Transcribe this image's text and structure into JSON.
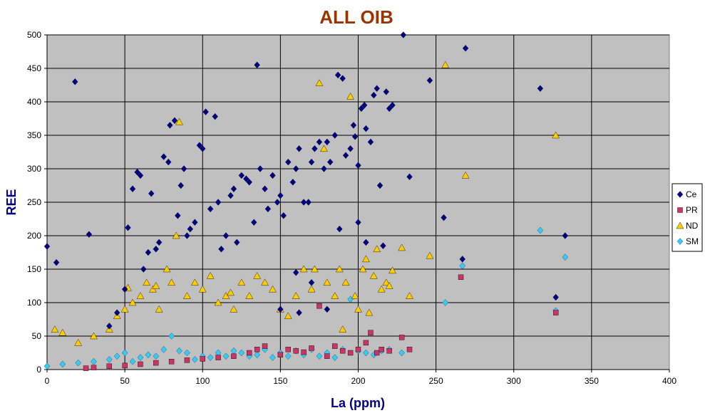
{
  "chart_data": {
    "type": "scatter",
    "title": "ALL OIB",
    "xlabel": "La (ppm)",
    "ylabel": "REE",
    "xlim": [
      0,
      400
    ],
    "ylim": [
      0,
      500
    ],
    "xticks": [
      "0",
      "50",
      "100",
      "150",
      "200",
      "250",
      "300",
      "350",
      "400"
    ],
    "yticks": [
      "0",
      "50",
      "100",
      "150",
      "200",
      "250",
      "300",
      "350",
      "400",
      "450",
      "500"
    ],
    "grid": true,
    "legend_position": "right",
    "plot_background": "#C0C0C0",
    "title_color": "#993300",
    "axis_title_color": "#000080",
    "series": [
      {
        "name": "Ce",
        "marker": "diamond",
        "color": "#000080",
        "points": [
          [
            0,
            184
          ],
          [
            6,
            160
          ],
          [
            18,
            430
          ],
          [
            27,
            202
          ],
          [
            40,
            65
          ],
          [
            45,
            85
          ],
          [
            50,
            120
          ],
          [
            52,
            212
          ],
          [
            55,
            270
          ],
          [
            58,
            295
          ],
          [
            60,
            290
          ],
          [
            62,
            150
          ],
          [
            65,
            175
          ],
          [
            67,
            263
          ],
          [
            70,
            180
          ],
          [
            72,
            190
          ],
          [
            75,
            318
          ],
          [
            78,
            310
          ],
          [
            79,
            365
          ],
          [
            82,
            372
          ],
          [
            84,
            230
          ],
          [
            86,
            275
          ],
          [
            88,
            300
          ],
          [
            90,
            200
          ],
          [
            92,
            210
          ],
          [
            95,
            220
          ],
          [
            98,
            335
          ],
          [
            100,
            330
          ],
          [
            102,
            385
          ],
          [
            105,
            240
          ],
          [
            108,
            378
          ],
          [
            110,
            250
          ],
          [
            112,
            180
          ],
          [
            115,
            200
          ],
          [
            118,
            260
          ],
          [
            120,
            270
          ],
          [
            122,
            190
          ],
          [
            125,
            290
          ],
          [
            128,
            285
          ],
          [
            130,
            280
          ],
          [
            133,
            220
          ],
          [
            135,
            455
          ],
          [
            137,
            300
          ],
          [
            140,
            270
          ],
          [
            142,
            240
          ],
          [
            145,
            290
          ],
          [
            148,
            250
          ],
          [
            150,
            260
          ],
          [
            152,
            230
          ],
          [
            155,
            310
          ],
          [
            158,
            280
          ],
          [
            160,
            300
          ],
          [
            162,
            330
          ],
          [
            165,
            250
          ],
          [
            168,
            250
          ],
          [
            170,
            310
          ],
          [
            172,
            330
          ],
          [
            175,
            340
          ],
          [
            178,
            300
          ],
          [
            180,
            340
          ],
          [
            182,
            310
          ],
          [
            185,
            350
          ],
          [
            187,
            440
          ],
          [
            190,
            435
          ],
          [
            192,
            320
          ],
          [
            195,
            330
          ],
          [
            197,
            365
          ],
          [
            198,
            348
          ],
          [
            200,
            305
          ],
          [
            202,
            390
          ],
          [
            204,
            395
          ],
          [
            205,
            360
          ],
          [
            208,
            340
          ],
          [
            210,
            410
          ],
          [
            212,
            420
          ],
          [
            214,
            275
          ],
          [
            216,
            185
          ],
          [
            218,
            415
          ],
          [
            220,
            390
          ],
          [
            222,
            395
          ],
          [
            229,
            500
          ],
          [
            233,
            288
          ],
          [
            246,
            432
          ],
          [
            255,
            227
          ],
          [
            267,
            165
          ],
          [
            269,
            480
          ],
          [
            317,
            420
          ],
          [
            327,
            108
          ],
          [
            333,
            200
          ],
          [
            160,
            145
          ],
          [
            170,
            130
          ],
          [
            180,
            90
          ],
          [
            150,
            90
          ],
          [
            162,
            85
          ],
          [
            205,
            190
          ],
          [
            200,
            220
          ],
          [
            188,
            210
          ]
        ]
      },
      {
        "name": "PR",
        "marker": "square",
        "color": "#CC3366",
        "points": [
          [
            25,
            2
          ],
          [
            30,
            3
          ],
          [
            40,
            5
          ],
          [
            50,
            6
          ],
          [
            60,
            8
          ],
          [
            70,
            10
          ],
          [
            80,
            12
          ],
          [
            90,
            14
          ],
          [
            100,
            16
          ],
          [
            110,
            18
          ],
          [
            120,
            20
          ],
          [
            130,
            25
          ],
          [
            135,
            30
          ],
          [
            140,
            35
          ],
          [
            150,
            22
          ],
          [
            155,
            30
          ],
          [
            160,
            28
          ],
          [
            165,
            26
          ],
          [
            170,
            32
          ],
          [
            175,
            95
          ],
          [
            180,
            20
          ],
          [
            185,
            35
          ],
          [
            190,
            28
          ],
          [
            195,
            25
          ],
          [
            200,
            30
          ],
          [
            205,
            40
          ],
          [
            208,
            55
          ],
          [
            212,
            25
          ],
          [
            215,
            30
          ],
          [
            220,
            28
          ],
          [
            228,
            48
          ],
          [
            233,
            30
          ],
          [
            266,
            138
          ],
          [
            327,
            85
          ]
        ]
      },
      {
        "name": "ND",
        "marker": "triangle",
        "color": "#FFCC00",
        "points": [
          [
            5,
            60
          ],
          [
            10,
            55
          ],
          [
            20,
            40
          ],
          [
            30,
            50
          ],
          [
            40,
            60
          ],
          [
            45,
            80
          ],
          [
            50,
            90
          ],
          [
            52,
            122
          ],
          [
            55,
            100
          ],
          [
            60,
            110
          ],
          [
            64,
            130
          ],
          [
            68,
            120
          ],
          [
            70,
            125
          ],
          [
            72,
            90
          ],
          [
            77,
            150
          ],
          [
            80,
            130
          ],
          [
            83,
            200
          ],
          [
            85,
            370
          ],
          [
            90,
            110
          ],
          [
            95,
            130
          ],
          [
            100,
            120
          ],
          [
            105,
            140
          ],
          [
            110,
            100
          ],
          [
            115,
            110
          ],
          [
            118,
            115
          ],
          [
            120,
            90
          ],
          [
            125,
            130
          ],
          [
            130,
            110
          ],
          [
            135,
            140
          ],
          [
            140,
            130
          ],
          [
            145,
            120
          ],
          [
            150,
            90
          ],
          [
            155,
            80
          ],
          [
            160,
            110
          ],
          [
            165,
            150
          ],
          [
            170,
            120
          ],
          [
            172,
            150
          ],
          [
            175,
            428
          ],
          [
            178,
            330
          ],
          [
            180,
            130
          ],
          [
            185,
            110
          ],
          [
            188,
            150
          ],
          [
            190,
            60
          ],
          [
            192,
            130
          ],
          [
            195,
            408
          ],
          [
            198,
            110
          ],
          [
            200,
            90
          ],
          [
            203,
            150
          ],
          [
            205,
            165
          ],
          [
            207,
            85
          ],
          [
            210,
            140
          ],
          [
            212,
            180
          ],
          [
            215,
            120
          ],
          [
            218,
            130
          ],
          [
            220,
            125
          ],
          [
            222,
            148
          ],
          [
            228,
            182
          ],
          [
            233,
            110
          ],
          [
            246,
            170
          ],
          [
            256,
            455
          ],
          [
            269,
            290
          ],
          [
            327,
            350
          ]
        ]
      },
      {
        "name": "SM",
        "marker": "diamond",
        "color": "#33CCFF",
        "points": [
          [
            0,
            5
          ],
          [
            10,
            8
          ],
          [
            20,
            10
          ],
          [
            30,
            12
          ],
          [
            40,
            15
          ],
          [
            45,
            20
          ],
          [
            50,
            25
          ],
          [
            55,
            12
          ],
          [
            60,
            18
          ],
          [
            65,
            22
          ],
          [
            70,
            20
          ],
          [
            75,
            30
          ],
          [
            80,
            50
          ],
          [
            85,
            28
          ],
          [
            90,
            25
          ],
          [
            95,
            15
          ],
          [
            100,
            20
          ],
          [
            105,
            18
          ],
          [
            110,
            25
          ],
          [
            115,
            20
          ],
          [
            120,
            28
          ],
          [
            125,
            25
          ],
          [
            130,
            20
          ],
          [
            135,
            22
          ],
          [
            140,
            30
          ],
          [
            145,
            18
          ],
          [
            150,
            25
          ],
          [
            155,
            20
          ],
          [
            160,
            28
          ],
          [
            165,
            22
          ],
          [
            170,
            30
          ],
          [
            175,
            20
          ],
          [
            180,
            25
          ],
          [
            185,
            18
          ],
          [
            190,
            30
          ],
          [
            195,
            105
          ],
          [
            200,
            28
          ],
          [
            205,
            25
          ],
          [
            210,
            22
          ],
          [
            215,
            28
          ],
          [
            220,
            30
          ],
          [
            228,
            25
          ],
          [
            256,
            100
          ],
          [
            267,
            155
          ],
          [
            317,
            208
          ],
          [
            327,
            88
          ],
          [
            333,
            168
          ]
        ]
      }
    ]
  }
}
